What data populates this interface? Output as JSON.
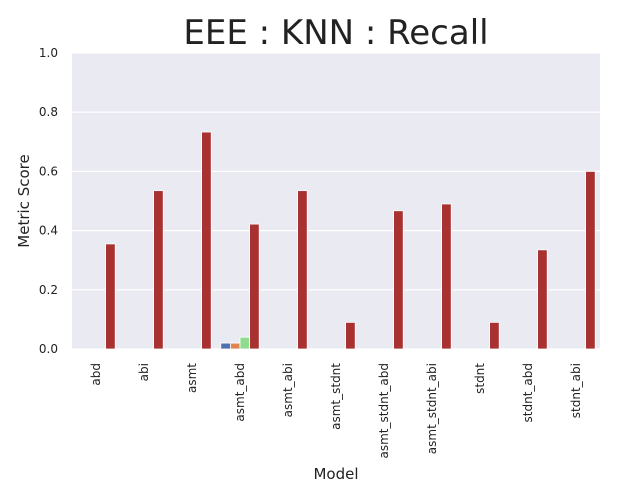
{
  "chart_data": {
    "type": "bar",
    "title": "EEE : KNN : Recall",
    "xlabel": "Model",
    "ylabel": "Metric Score",
    "ylim": [
      0,
      1.0
    ],
    "yticks": [
      "0.0",
      "0.2",
      "0.4",
      "0.6",
      "0.8",
      "1.0"
    ],
    "grid": true,
    "legend": "none",
    "categories": [
      "abd",
      "abi",
      "asmt",
      "asmt_abd",
      "asmt_abi",
      "asmt_stdnt",
      "asmt_stdnt_abd",
      "asmt_stdnt_abi",
      "stdnt",
      "stdnt_abd",
      "stdnt_abi"
    ],
    "series": [
      {
        "name": "series-1",
        "color": "#4c72b0",
        "values": [
          0,
          0,
          0,
          0.02,
          0,
          0,
          0,
          0,
          0,
          0,
          0
        ]
      },
      {
        "name": "series-2",
        "color": "#dd8452",
        "values": [
          0,
          0,
          0,
          0.02,
          0,
          0,
          0,
          0,
          0,
          0,
          0
        ]
      },
      {
        "name": "series-3",
        "color": "#8fdc8f",
        "values": [
          0,
          0,
          0,
          0.04,
          0,
          0,
          0,
          0,
          0,
          0,
          0
        ]
      },
      {
        "name": "series-4",
        "color": "#a83232",
        "values": [
          0.355,
          0.535,
          0.733,
          0.422,
          0.535,
          0.09,
          0.467,
          0.49,
          0.09,
          0.335,
          0.6
        ]
      }
    ],
    "colors": {
      "plot_background": "#eaeaf2",
      "grid": "#ffffff",
      "text": "#222222"
    }
  }
}
